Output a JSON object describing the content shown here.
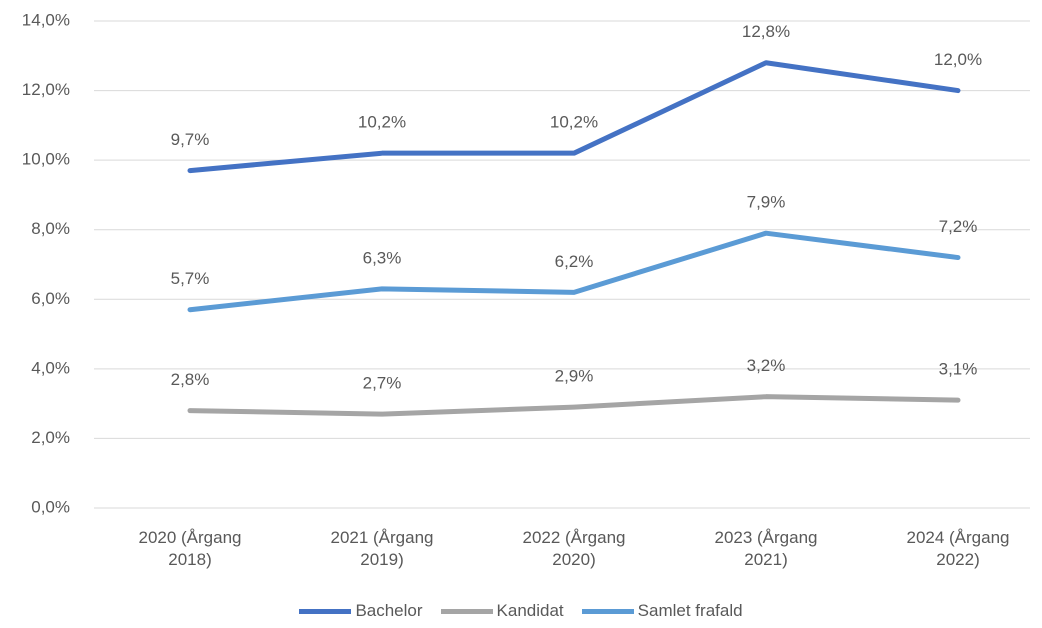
{
  "chart_data": {
    "type": "line",
    "categories": [
      "2020 (Årgang 2018)",
      "2021 (Årgang 2019)",
      "2022 (Årgang 2020)",
      "2023 (Årgang 2021)",
      "2024 (Årgang 2022)"
    ],
    "series": [
      {
        "name": "Bachelor",
        "color": "#4472c4",
        "values": [
          9.7,
          10.2,
          10.2,
          12.8,
          12.0
        ],
        "value_labels": [
          "9,7%",
          "10,2%",
          "10,2%",
          "12,8%",
          "12,0%"
        ]
      },
      {
        "name": "Kandidat",
        "color": "#a5a5a5",
        "values": [
          2.8,
          2.7,
          2.9,
          3.2,
          3.1
        ],
        "value_labels": [
          "2,8%",
          "2,7%",
          "2,9%",
          "3,2%",
          "3,1%"
        ]
      },
      {
        "name": "Samlet frafald",
        "color": "#5b9bd5",
        "values": [
          5.7,
          6.3,
          6.2,
          7.9,
          7.2
        ],
        "value_labels": [
          "5,7%",
          "6,3%",
          "6,2%",
          "7,9%",
          "7,2%"
        ]
      }
    ],
    "ylim": [
      0,
      14
    ],
    "yticks": [
      {
        "value": 0,
        "label": "0,0%"
      },
      {
        "value": 2,
        "label": "2,0%"
      },
      {
        "value": 4,
        "label": "4,0%"
      },
      {
        "value": 6,
        "label": "6,0%"
      },
      {
        "value": 8,
        "label": "8,0%"
      },
      {
        "value": 10,
        "label": "10,0%"
      },
      {
        "value": 12,
        "label": "12,0%"
      },
      {
        "value": 14,
        "label": "14,0%"
      }
    ],
    "grid": true,
    "legend": "bottom"
  }
}
